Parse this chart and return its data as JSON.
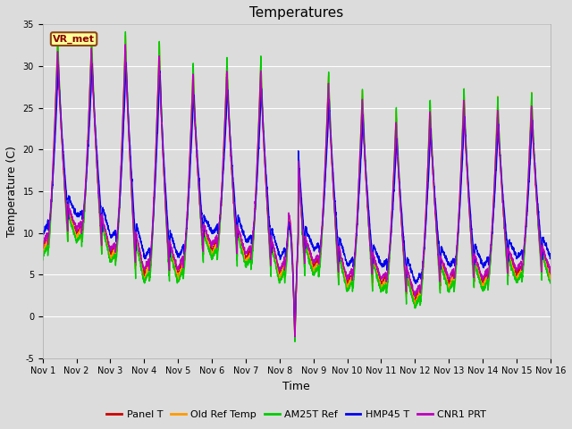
{
  "title": "Temperatures",
  "xlabel": "Time",
  "ylabel": "Temperature (C)",
  "ylim": [
    -5,
    35
  ],
  "xlim": [
    0,
    15
  ],
  "background_color": "#dcdcdc",
  "plot_bg_color": "#dcdcdc",
  "series": [
    "Panel T",
    "Old Ref Temp",
    "AM25T Ref",
    "HMP45 T",
    "CNR1 PRT"
  ],
  "colors": [
    "#cc0000",
    "#ff9900",
    "#00cc00",
    "#0000ee",
    "#bb00bb"
  ],
  "linewidths": [
    1.0,
    1.0,
    1.0,
    1.0,
    1.0
  ],
  "annotation_text": "VR_met",
  "xtick_labels": [
    "Nov 1",
    "Nov 2",
    "Nov 3",
    "Nov 4",
    "Nov 5",
    "Nov 6",
    "Nov 7",
    "Nov 8",
    "Nov 9",
    "Nov 10",
    "Nov 11",
    "Nov 12",
    "Nov 13",
    "Nov 14",
    "Nov 15",
    "Nov 16"
  ],
  "xtick_positions": [
    0,
    1,
    2,
    3,
    4,
    5,
    6,
    7,
    8,
    9,
    10,
    11,
    12,
    13,
    14,
    15
  ],
  "ytick_positions": [
    -5,
    0,
    5,
    10,
    15,
    20,
    25,
    30,
    35
  ],
  "title_fontsize": 11,
  "axis_label_fontsize": 9,
  "tick_fontsize": 7,
  "legend_fontsize": 8,
  "grid_color": "#ffffff",
  "n_points": 3000,
  "peak_maxes": [
    31,
    32.5,
    31,
    33.5,
    28,
    29,
    29,
    29,
    28,
    27,
    24,
    22,
    27,
    24,
    25
  ],
  "night_mins": [
    8,
    10,
    7.5,
    5,
    5,
    8,
    7,
    5,
    6,
    4,
    4,
    2,
    4,
    4,
    5
  ],
  "deep_trough_day": 7.5,
  "deep_trough_val": -3.0
}
